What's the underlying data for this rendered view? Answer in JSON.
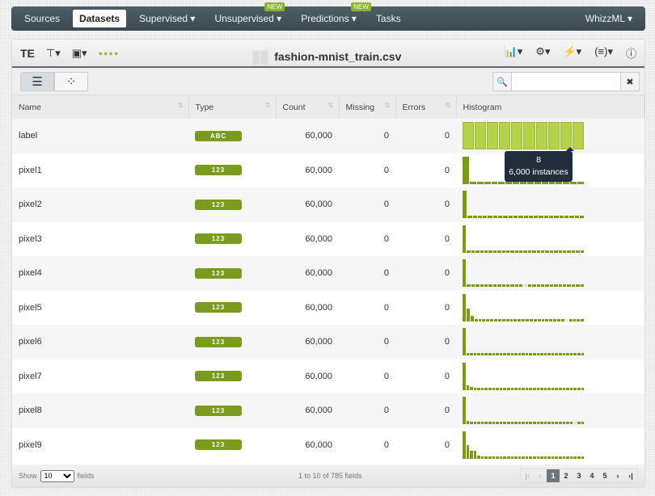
{
  "nav": {
    "items": [
      {
        "label": "Sources"
      },
      {
        "label": "Datasets",
        "active": true
      },
      {
        "label": "Supervised ▾"
      },
      {
        "label": "Unsupervised ▾",
        "badge": "NEW"
      },
      {
        "label": "Predictions ▾",
        "badge": "NEW"
      },
      {
        "label": "Tasks"
      }
    ],
    "right": "WhizzML ▾"
  },
  "toolbar": {
    "te": "TE",
    "title": "fashion-mnist_train.csv",
    "dots": "●●●●"
  },
  "columns": [
    "Name",
    "Type",
    "Count",
    "Missing",
    "Errors",
    "Histogram"
  ],
  "rows": [
    {
      "name": "label",
      "type": "ABC",
      "count": "60,000",
      "missing": "0",
      "errors": "0",
      "hist": [
        1,
        1,
        1,
        1,
        1,
        1,
        1,
        1,
        1,
        1
      ],
      "categorical": true
    },
    {
      "name": "pixel1",
      "type": "123",
      "count": "60,000",
      "missing": "0",
      "errors": "0",
      "hist": [
        100,
        6,
        6,
        6,
        6,
        6,
        6,
        6,
        6,
        6,
        6,
        6,
        6,
        6,
        6,
        6,
        6
      ]
    },
    {
      "name": "pixel2",
      "type": "123",
      "count": "60,000",
      "missing": "0",
      "errors": "0",
      "hist": [
        100,
        6,
        6,
        6,
        6,
        6,
        6,
        6,
        6,
        6,
        6,
        6,
        6,
        6,
        6,
        6,
        6,
        6,
        6,
        6,
        6,
        6,
        6,
        6
      ]
    },
    {
      "name": "pixel3",
      "type": "123",
      "count": "60,000",
      "missing": "0",
      "errors": "0",
      "hist": [
        100,
        8,
        8,
        8,
        8,
        8,
        8,
        8,
        8,
        8,
        8,
        8,
        8,
        8,
        8,
        8,
        8,
        8,
        8,
        8,
        8,
        8,
        8,
        8,
        8,
        8,
        8,
        8
      ]
    },
    {
      "name": "pixel4",
      "type": "123",
      "count": "60,000",
      "missing": "0",
      "errors": "0",
      "hist": [
        100,
        6,
        6,
        6,
        6,
        6,
        6,
        6,
        6,
        6,
        6,
        6,
        6,
        6,
        0,
        6,
        6,
        6,
        6,
        6,
        6,
        6,
        6,
        6,
        6,
        6,
        6,
        6
      ]
    },
    {
      "name": "pixel5",
      "type": "123",
      "count": "60,000",
      "missing": "0",
      "errors": "0",
      "hist": [
        100,
        45,
        20,
        8,
        8,
        8,
        8,
        8,
        8,
        8,
        8,
        8,
        8,
        8,
        8,
        8,
        8,
        8,
        8,
        8,
        8,
        8,
        8,
        8,
        8,
        8,
        0,
        8,
        8,
        8,
        8
      ]
    },
    {
      "name": "pixel6",
      "type": "123",
      "count": "60,000",
      "missing": "0",
      "errors": "0",
      "hist": [
        100,
        10,
        6,
        6,
        6,
        6,
        6,
        6,
        6,
        6,
        6,
        6,
        6,
        6,
        6,
        6,
        6,
        6,
        6,
        6,
        6,
        6,
        6,
        6,
        6,
        6,
        6,
        6,
        6,
        6,
        6,
        6,
        6
      ]
    },
    {
      "name": "pixel7",
      "type": "123",
      "count": "60,000",
      "missing": "0",
      "errors": "0",
      "hist": [
        100,
        18,
        10,
        8,
        8,
        8,
        8,
        8,
        8,
        8,
        8,
        8,
        8,
        8,
        8,
        8,
        8,
        8,
        8,
        8,
        8,
        8,
        8,
        8,
        8,
        8,
        8,
        8,
        8,
        8,
        8,
        8,
        8
      ]
    },
    {
      "name": "pixel8",
      "type": "123",
      "count": "60,000",
      "missing": "0",
      "errors": "0",
      "hist": [
        100,
        12,
        8,
        8,
        8,
        8,
        8,
        8,
        8,
        8,
        8,
        8,
        8,
        8,
        8,
        8,
        8,
        8,
        8,
        8,
        8,
        8,
        8,
        8,
        8,
        8,
        8,
        8,
        8,
        8,
        0,
        8,
        8
      ]
    },
    {
      "name": "pixel9",
      "type": "123",
      "count": "60,000",
      "missing": "0",
      "errors": "0",
      "hist": [
        100,
        50,
        30,
        30,
        12,
        8,
        8,
        8,
        8,
        8,
        8,
        8,
        8,
        8,
        8,
        8,
        8,
        8,
        8,
        8,
        8,
        8,
        8,
        8,
        8,
        8,
        8,
        8,
        8,
        8,
        8,
        8,
        8
      ]
    }
  ],
  "tooltip": {
    "value": "8",
    "instances": "6,000 instances"
  },
  "footer": {
    "show": "Show",
    "page_size": "10",
    "fields": "fields",
    "info": "1 to 10 of 785 fields",
    "pages": [
      "1",
      "2",
      "3",
      "4",
      "5"
    ],
    "current": "1"
  }
}
